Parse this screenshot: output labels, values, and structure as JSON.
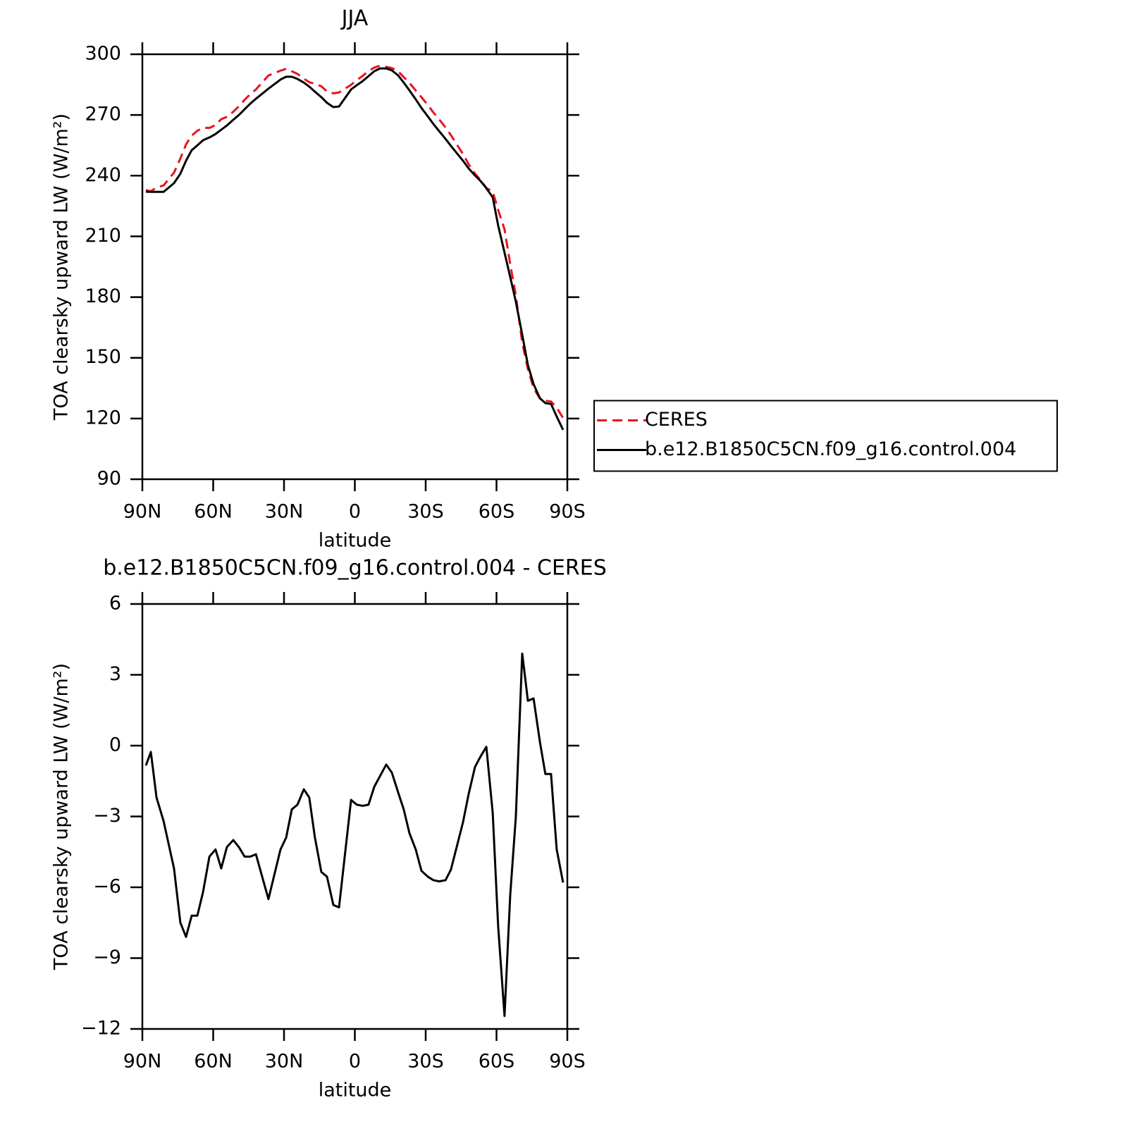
{
  "chart_data": [
    {
      "type": "line",
      "title": "JJA",
      "x_label": "latitude",
      "y_label": "TOA clearsky upward LW (W/m²)",
      "x": [
        88.5,
        86.4,
        84,
        81,
        76.6,
        73.9,
        71.5,
        69.1,
        66.7,
        64.3,
        61.6,
        59,
        56.6,
        54.2,
        51.5,
        49.1,
        46.7,
        44.3,
        41.9,
        36.6,
        31.5,
        29.1,
        26.7,
        24.3,
        21.6,
        19.3,
        16.9,
        14.2,
        11.8,
        9.1,
        6.7,
        1.6,
        -0.8,
        -3.4,
        -5.8,
        -8.2,
        -10.6,
        -13.3,
        -15.7,
        -18.4,
        -20.7,
        -23.1,
        -25.8,
        -28.2,
        -30.9,
        -33.3,
        -35.7,
        -38.4,
        -40.7,
        -45.8,
        -48.2,
        -50.9,
        -53.3,
        -55.7,
        -58.4,
        -60.7,
        -63.4,
        -65.8,
        -68.2,
        -70.9,
        -73.3,
        -75.7,
        -78.4,
        -80.7,
        -83.1,
        -85.5,
        -88.2
      ],
      "series": [
        {
          "name": "CERES",
          "color": "#e8141c",
          "linestyle": "dashed",
          "values": [
            232.9,
            232.3,
            234.2,
            235.2,
            241.5,
            248.5,
            255.5,
            259.8,
            262.2,
            263.7,
            263.6,
            265.0,
            267.9,
            269.1,
            271.6,
            274.3,
            277.5,
            280.3,
            282.6,
            289.5,
            291.9,
            292.8,
            291.6,
            290.3,
            287.9,
            286.2,
            285.4,
            284.2,
            281.6,
            280.7,
            281.1,
            284.9,
            287.2,
            289.4,
            291.7,
            293.4,
            294.3,
            293.8,
            293.2,
            291.5,
            288.7,
            285.9,
            282.1,
            278.8,
            274.9,
            271.2,
            267.8,
            263.9,
            260.0,
            250.7,
            245.7,
            241.0,
            237.8,
            233.9,
            232.2,
            223.1,
            213.5,
            196.4,
            180.7,
            157.5,
            144.5,
            135.0,
            129.9,
            128.8,
            128.4,
            125.4,
            120.2
          ]
        },
        {
          "name": "b.e12.B1850C5CN.f09_g16.control.004",
          "color": "#000000",
          "linestyle": "solid",
          "values": [
            232.1,
            232.0,
            232.0,
            232.0,
            236.3,
            241.0,
            247.4,
            252.6,
            255.0,
            257.5,
            258.9,
            260.6,
            262.7,
            264.8,
            267.6,
            270.0,
            272.8,
            275.6,
            278.0,
            283.0,
            287.5,
            288.9,
            288.9,
            287.8,
            286.0,
            284.0,
            281.5,
            278.8,
            276.0,
            273.9,
            274.2,
            282.6,
            284.7,
            286.8,
            289.2,
            291.6,
            293.0,
            293.0,
            292.0,
            289.5,
            286.0,
            282.2,
            277.7,
            273.5,
            269.3,
            265.5,
            262.0,
            258.2,
            254.7,
            247.4,
            243.6,
            240.1,
            237.3,
            233.8,
            229.3,
            215.4,
            202.0,
            190.0,
            177.7,
            161.4,
            146.4,
            137.0,
            130.0,
            127.6,
            127.2,
            121.0,
            114.4
          ]
        }
      ],
      "xlim": [
        90,
        -90
      ],
      "xticks": [
        {
          "value": 90,
          "label": "90N"
        },
        {
          "value": 60,
          "label": "60N"
        },
        {
          "value": 30,
          "label": "30N"
        },
        0,
        {
          "value": -30,
          "label": "30S"
        },
        {
          "value": -60,
          "label": "60S"
        },
        {
          "value": -90,
          "label": "90S"
        }
      ],
      "ylim": [
        90,
        300
      ],
      "yticks": [
        90,
        120,
        150,
        180,
        210,
        240,
        270,
        300
      ],
      "legend": "right"
    },
    {
      "type": "line",
      "title": "b.e12.B1850C5CN.f09_g16.control.004 - CERES",
      "x_label": "latitude",
      "y_label": "TOA clearsky upward LW (W/m²)",
      "x": [
        88.5,
        86.4,
        84,
        81,
        76.6,
        73.9,
        71.5,
        69.1,
        66.7,
        64.3,
        61.6,
        59,
        56.6,
        54.2,
        51.5,
        49.1,
        46.7,
        44.3,
        41.9,
        36.6,
        31.5,
        29.1,
        26.7,
        24.3,
        21.6,
        19.3,
        16.9,
        14.2,
        11.8,
        9.1,
        6.7,
        1.6,
        -0.8,
        -3.4,
        -5.8,
        -8.2,
        -10.6,
        -13.3,
        -15.7,
        -18.4,
        -20.7,
        -23.1,
        -25.8,
        -28.2,
        -30.9,
        -33.3,
        -35.7,
        -38.4,
        -40.7,
        -45.8,
        -48.2,
        -50.9,
        -53.3,
        -55.7,
        -58.4,
        -60.7,
        -63.4,
        -65.8,
        -68.2,
        -70.9,
        -73.3,
        -75.7,
        -78.4,
        -80.7,
        -83.1,
        -85.5,
        -88.2
      ],
      "series": [
        {
          "color": "#000000",
          "linestyle": "solid",
          "values": [
            -0.84,
            -0.27,
            -2.2,
            -3.2,
            -5.2,
            -7.5,
            -8.1,
            -7.2,
            -7.2,
            -6.2,
            -4.7,
            -4.4,
            -5.2,
            -4.3,
            -4.0,
            -4.3,
            -4.7,
            -4.7,
            -4.6,
            -6.5,
            -4.4,
            -3.9,
            -2.7,
            -2.5,
            -1.85,
            -2.2,
            -3.9,
            -5.35,
            -5.55,
            -6.75,
            -6.85,
            -2.3,
            -2.5,
            -2.55,
            -2.5,
            -1.75,
            -1.3,
            -0.8,
            -1.15,
            -2.0,
            -2.7,
            -3.7,
            -4.4,
            -5.3,
            -5.55,
            -5.7,
            -5.75,
            -5.7,
            -5.25,
            -3.25,
            -2.05,
            -0.9,
            -0.45,
            -0.05,
            -2.85,
            -7.65,
            -11.45,
            -6.35,
            -3.0,
            3.9,
            1.9,
            2.0,
            0.15,
            -1.2,
            -1.2,
            -4.4,
            -5.8
          ]
        }
      ],
      "xlim": [
        90,
        -90
      ],
      "xticks": [
        {
          "value": 90,
          "label": "90N"
        },
        {
          "value": 60,
          "label": "60N"
        },
        {
          "value": 30,
          "label": "30N"
        },
        0,
        {
          "value": -30,
          "label": "30S"
        },
        {
          "value": -60,
          "label": "60S"
        },
        {
          "value": -90,
          "label": "90S"
        }
      ],
      "ylim": [
        -12,
        6
      ],
      "yticks": [
        {
          "value": -12,
          "label": "−12"
        },
        {
          "value": -9,
          "label": "−9"
        },
        {
          "value": -6,
          "label": "−6"
        },
        {
          "value": -3,
          "label": "−3"
        },
        0,
        3,
        6
      ]
    }
  ]
}
